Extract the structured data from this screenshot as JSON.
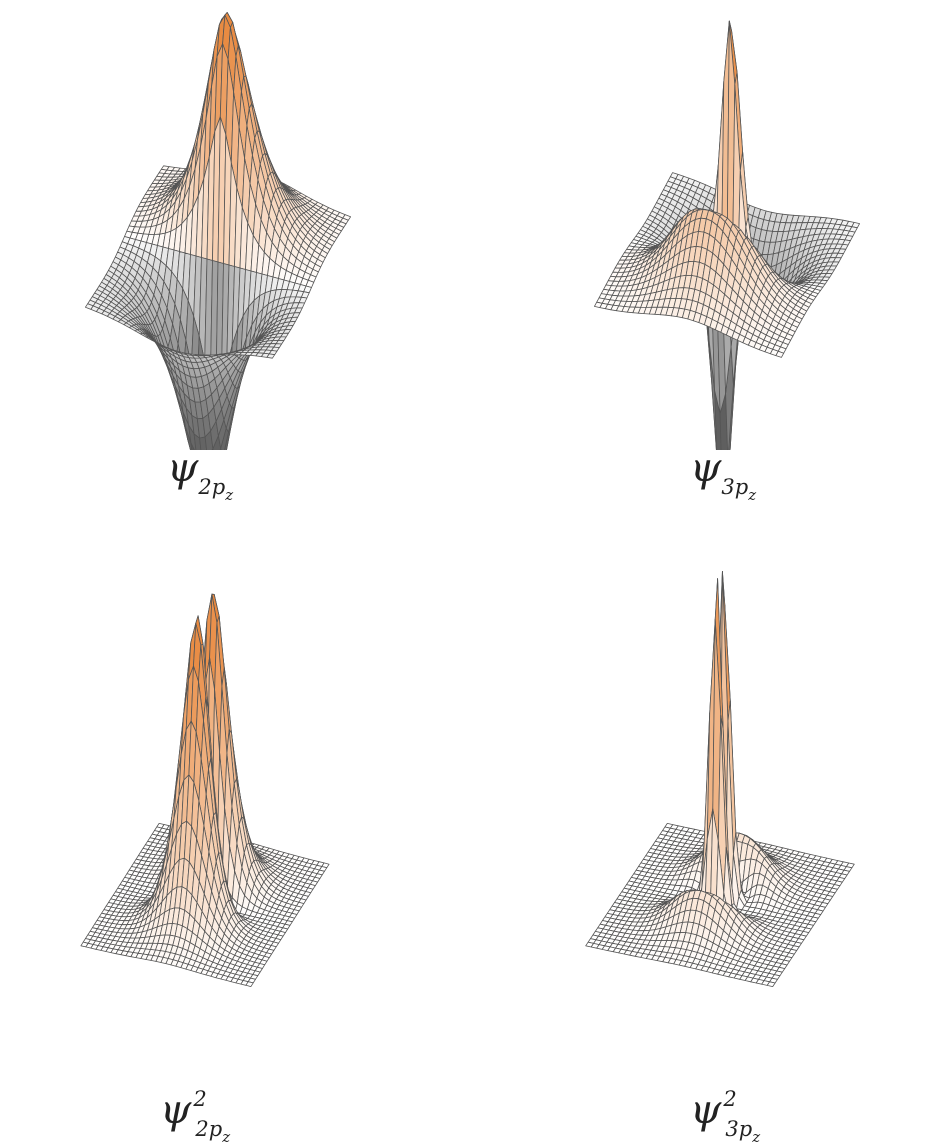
{
  "figure": {
    "panels": [
      {
        "id": "psi-2pz",
        "symbol": "ψ",
        "n": "2",
        "orbital": "p",
        "orbital_sub": "z",
        "power": "",
        "function": "psi",
        "n_quantum": 2
      },
      {
        "id": "psi-3pz",
        "symbol": "ψ",
        "n": "3",
        "orbital": "p",
        "orbital_sub": "z",
        "power": "",
        "function": "psi",
        "n_quantum": 3
      },
      {
        "id": "psi-sq-2pz",
        "symbol": "ψ",
        "n": "2",
        "orbital": "p",
        "orbital_sub": "z",
        "power": "2",
        "function": "psi_squared",
        "n_quantum": 2
      },
      {
        "id": "psi-sq-3pz",
        "symbol": "ψ",
        "n": "3",
        "orbital": "p",
        "orbital_sub": "z",
        "power": "2",
        "function": "psi_squared",
        "n_quantum": 3
      }
    ],
    "colors": {
      "peak": "#e8893f",
      "flat": "#ffffff",
      "negative": "#4a4a4a",
      "grid_line": "#555555"
    }
  }
}
